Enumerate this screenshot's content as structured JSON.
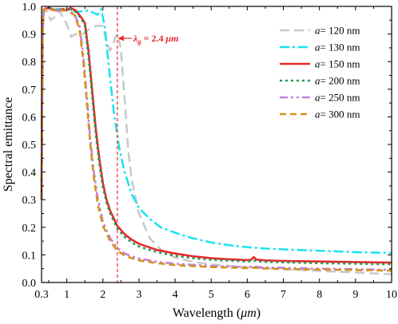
{
  "chart_data": {
    "type": "line",
    "xlabel": "Wavelength (μm)",
    "ylabel": "Spectral emittance",
    "xlim": [
      0.3,
      10
    ],
    "ylim": [
      0,
      1.0
    ],
    "xticks": [
      0.3,
      1,
      2,
      3,
      4,
      5,
      6,
      7,
      8,
      9,
      10
    ],
    "xtick_labels": [
      "0.3",
      "1",
      "2",
      "3",
      "4",
      "5",
      "6",
      "7",
      "8",
      "9",
      "10"
    ],
    "yticks": [
      0,
      0.1,
      0.2,
      0.3,
      0.4,
      0.5,
      0.6,
      0.7,
      0.8,
      0.9,
      1.0
    ],
    "ytick_labels": [
      "0.0",
      "0.1",
      "0.2",
      "0.3",
      "0.4",
      "0.5",
      "0.6",
      "0.7",
      "0.8",
      "0.9",
      "1.0"
    ],
    "legend_position": "top-right",
    "grid": false,
    "annotation": {
      "text": "λg = 2.4 μm",
      "symbol": "λ",
      "subscript": "g",
      "suffix": "= 2.4",
      "unit": "μm",
      "x": 2.4,
      "color": "#e8282b"
    },
    "series": [
      {
        "name": "a= 120 nm",
        "label_prefix": "a",
        "label_suffix": "= 120 nm",
        "color": "#c8c8c8",
        "dash": "12,6",
        "width": 2.5,
        "points": [
          [
            0.3,
            0.34
          ],
          [
            0.31,
            0.5
          ],
          [
            0.33,
            0.9
          ],
          [
            0.36,
            0.98
          ],
          [
            0.45,
            0.985
          ],
          [
            0.55,
            0.95
          ],
          [
            0.65,
            0.96
          ],
          [
            0.78,
            0.985
          ],
          [
            0.88,
            0.965
          ],
          [
            1.0,
            0.935
          ],
          [
            1.12,
            0.89
          ],
          [
            1.25,
            0.9
          ],
          [
            1.45,
            0.9
          ],
          [
            1.65,
            0.92
          ],
          [
            1.85,
            0.93
          ],
          [
            2.0,
            0.93
          ],
          [
            2.1,
            0.87
          ],
          [
            2.2,
            0.84
          ],
          [
            2.28,
            0.86
          ],
          [
            2.35,
            0.89
          ],
          [
            2.42,
            0.9
          ],
          [
            2.5,
            0.84
          ],
          [
            2.6,
            0.67
          ],
          [
            2.7,
            0.48
          ],
          [
            2.8,
            0.37
          ],
          [
            3.0,
            0.25
          ],
          [
            3.3,
            0.16
          ],
          [
            3.6,
            0.12
          ],
          [
            4.0,
            0.09
          ],
          [
            4.5,
            0.075
          ],
          [
            5.0,
            0.065
          ],
          [
            6.0,
            0.055
          ],
          [
            7.0,
            0.048
          ],
          [
            8.0,
            0.042
          ],
          [
            9.0,
            0.036
          ],
          [
            10.0,
            0.03
          ]
        ]
      },
      {
        "name": "a= 130 nm",
        "label_prefix": "a",
        "label_suffix": "= 130 nm",
        "color": "#16e3ef",
        "dash": "12,4,3,4",
        "width": 2.5,
        "points": [
          [
            0.3,
            0.3
          ],
          [
            0.31,
            0.5
          ],
          [
            0.33,
            0.9
          ],
          [
            0.36,
            0.99
          ],
          [
            0.5,
            0.995
          ],
          [
            0.7,
            0.99
          ],
          [
            1.0,
            0.99
          ],
          [
            1.3,
            0.98
          ],
          [
            1.6,
            0.985
          ],
          [
            1.85,
            0.97
          ],
          [
            1.95,
            0.99
          ],
          [
            2.05,
            0.93
          ],
          [
            2.15,
            0.8
          ],
          [
            2.3,
            0.62
          ],
          [
            2.45,
            0.49
          ],
          [
            2.6,
            0.4
          ],
          [
            2.8,
            0.32
          ],
          [
            3.0,
            0.27
          ],
          [
            3.3,
            0.23
          ],
          [
            3.6,
            0.2
          ],
          [
            4.0,
            0.18
          ],
          [
            4.5,
            0.16
          ],
          [
            5.0,
            0.145
          ],
          [
            5.5,
            0.135
          ],
          [
            6.0,
            0.128
          ],
          [
            6.5,
            0.123
          ],
          [
            7.0,
            0.12
          ],
          [
            8.0,
            0.115
          ],
          [
            9.0,
            0.11
          ],
          [
            10.0,
            0.107
          ]
        ]
      },
      {
        "name": "a= 150 nm",
        "label_prefix": "a",
        "label_suffix": "= 150 nm",
        "color": "#e8282b",
        "dash": "",
        "width": 2.6,
        "points": [
          [
            0.3,
            0.3
          ],
          [
            0.31,
            0.55
          ],
          [
            0.33,
            0.92
          ],
          [
            0.36,
            0.99
          ],
          [
            0.5,
            0.995
          ],
          [
            0.7,
            0.985
          ],
          [
            0.9,
            0.99
          ],
          [
            1.0,
            0.985
          ],
          [
            1.1,
            0.995
          ],
          [
            1.25,
            0.985
          ],
          [
            1.4,
            0.96
          ],
          [
            1.5,
            0.94
          ],
          [
            1.6,
            0.84
          ],
          [
            1.7,
            0.7
          ],
          [
            1.8,
            0.56
          ],
          [
            1.9,
            0.45
          ],
          [
            2.0,
            0.36
          ],
          [
            2.1,
            0.3
          ],
          [
            2.2,
            0.26
          ],
          [
            2.4,
            0.205
          ],
          [
            2.6,
            0.175
          ],
          [
            2.8,
            0.155
          ],
          [
            3.0,
            0.14
          ],
          [
            3.5,
            0.118
          ],
          [
            4.0,
            0.105
          ],
          [
            4.5,
            0.095
          ],
          [
            5.0,
            0.088
          ],
          [
            5.5,
            0.084
          ],
          [
            6.0,
            0.081
          ],
          [
            6.1,
            0.082
          ],
          [
            6.18,
            0.092
          ],
          [
            6.25,
            0.083
          ],
          [
            6.5,
            0.08
          ],
          [
            7.0,
            0.078
          ],
          [
            8.0,
            0.076
          ],
          [
            9.0,
            0.074
          ],
          [
            10.0,
            0.072
          ]
        ]
      },
      {
        "name": "a= 200 nm",
        "label_prefix": "a",
        "label_suffix": "= 200 nm",
        "color": "#1f9a50",
        "dash": "3,4",
        "width": 2.6,
        "points": [
          [
            0.3,
            0.3
          ],
          [
            0.31,
            0.55
          ],
          [
            0.33,
            0.92
          ],
          [
            0.36,
            0.99
          ],
          [
            0.5,
            0.995
          ],
          [
            0.7,
            0.985
          ],
          [
            0.9,
            0.99
          ],
          [
            1.0,
            0.985
          ],
          [
            1.1,
            0.99
          ],
          [
            1.25,
            0.98
          ],
          [
            1.4,
            0.955
          ],
          [
            1.5,
            0.93
          ],
          [
            1.6,
            0.82
          ],
          [
            1.7,
            0.68
          ],
          [
            1.8,
            0.54
          ],
          [
            1.9,
            0.43
          ],
          [
            2.0,
            0.345
          ],
          [
            2.1,
            0.29
          ],
          [
            2.2,
            0.25
          ],
          [
            2.4,
            0.195
          ],
          [
            2.6,
            0.165
          ],
          [
            2.8,
            0.145
          ],
          [
            3.0,
            0.13
          ],
          [
            3.5,
            0.11
          ],
          [
            4.0,
            0.097
          ],
          [
            4.5,
            0.088
          ],
          [
            5.0,
            0.082
          ],
          [
            6.0,
            0.076
          ],
          [
            6.2,
            0.079
          ],
          [
            6.4,
            0.075
          ],
          [
            7.0,
            0.073
          ],
          [
            8.0,
            0.07
          ],
          [
            9.0,
            0.068
          ],
          [
            10.0,
            0.066
          ]
        ]
      },
      {
        "name": "a= 250 nm",
        "label_prefix": "a",
        "label_suffix": "= 250 nm",
        "color": "#c67fe0",
        "dash": "10,4,3,4,3,4",
        "width": 2.6,
        "points": [
          [
            0.3,
            0.3
          ],
          [
            0.31,
            0.55
          ],
          [
            0.33,
            0.92
          ],
          [
            0.36,
            0.99
          ],
          [
            0.5,
            0.99
          ],
          [
            0.7,
            0.985
          ],
          [
            1.0,
            0.985
          ],
          [
            1.2,
            0.975
          ],
          [
            1.35,
            0.93
          ],
          [
            1.45,
            0.83
          ],
          [
            1.55,
            0.68
          ],
          [
            1.65,
            0.52
          ],
          [
            1.75,
            0.4
          ],
          [
            1.85,
            0.31
          ],
          [
            2.0,
            0.22
          ],
          [
            2.2,
            0.16
          ],
          [
            2.4,
            0.125
          ],
          [
            2.6,
            0.105
          ],
          [
            2.8,
            0.095
          ],
          [
            3.0,
            0.087
          ],
          [
            3.5,
            0.075
          ],
          [
            4.0,
            0.068
          ],
          [
            5.0,
            0.06
          ],
          [
            6.0,
            0.056
          ],
          [
            6.2,
            0.058
          ],
          [
            6.4,
            0.055
          ],
          [
            7.0,
            0.053
          ],
          [
            8.0,
            0.05
          ],
          [
            9.0,
            0.048
          ],
          [
            10.0,
            0.046
          ]
        ]
      },
      {
        "name": "a= 300 nm",
        "label_prefix": "a",
        "label_suffix": "= 300 nm",
        "color": "#d4921b",
        "dash": "8,5",
        "width": 2.6,
        "points": [
          [
            0.3,
            0.3
          ],
          [
            0.31,
            0.55
          ],
          [
            0.33,
            0.92
          ],
          [
            0.36,
            0.99
          ],
          [
            0.5,
            0.99
          ],
          [
            0.7,
            0.985
          ],
          [
            1.0,
            0.985
          ],
          [
            1.2,
            0.97
          ],
          [
            1.35,
            0.92
          ],
          [
            1.45,
            0.81
          ],
          [
            1.55,
            0.66
          ],
          [
            1.65,
            0.5
          ],
          [
            1.75,
            0.38
          ],
          [
            1.85,
            0.29
          ],
          [
            2.0,
            0.205
          ],
          [
            2.2,
            0.15
          ],
          [
            2.4,
            0.115
          ],
          [
            2.6,
            0.098
          ],
          [
            2.8,
            0.088
          ],
          [
            3.0,
            0.08
          ],
          [
            3.5,
            0.07
          ],
          [
            4.0,
            0.063
          ],
          [
            5.0,
            0.056
          ],
          [
            6.0,
            0.052
          ],
          [
            6.2,
            0.054
          ],
          [
            6.4,
            0.051
          ],
          [
            7.0,
            0.049
          ],
          [
            8.0,
            0.047
          ],
          [
            9.0,
            0.045
          ],
          [
            10.0,
            0.043
          ]
        ]
      }
    ]
  }
}
